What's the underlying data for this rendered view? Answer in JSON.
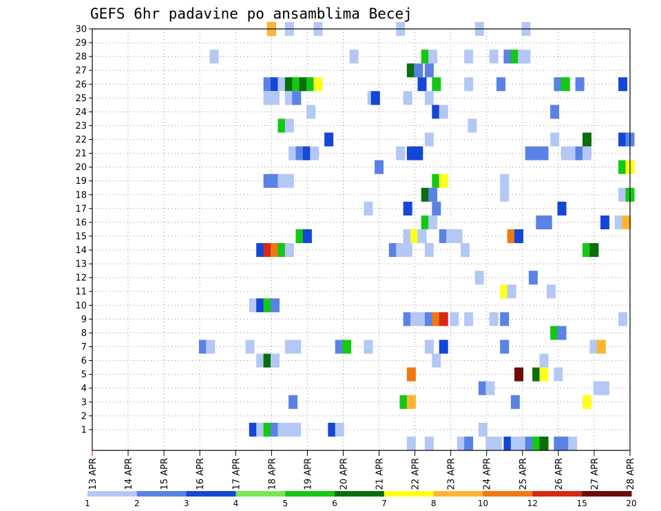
{
  "chart_data": {
    "type": "heatmap",
    "title": "GEFS 6hr padavine po ansamblima Becej",
    "x_ticks": [
      "13 APR",
      "14 APR",
      "15 APR",
      "16 APR",
      "17 APR",
      "18 APR",
      "19 APR",
      "20 APR",
      "21 APR",
      "22 APR",
      "23 APR",
      "24 APR",
      "25 APR",
      "26 APR",
      "27 APR",
      "28 APR"
    ],
    "y_ticks": [
      "1",
      "2",
      "3",
      "4",
      "5",
      "6",
      "7",
      "8",
      "9",
      "10",
      "11",
      "12",
      "13",
      "14",
      "15",
      "16",
      "17",
      "18",
      "19",
      "20",
      "21",
      "22",
      "23",
      "24",
      "25",
      "26",
      "27",
      "28",
      "29",
      "30"
    ],
    "x_range": [
      "13 APR 00Z",
      "28 APR 00Z"
    ],
    "y_range": [
      0,
      30
    ],
    "grid": true,
    "colorbar": {
      "labels": [
        "1",
        "2",
        "3",
        "4",
        "5",
        "6",
        "7",
        "8",
        "10",
        "12",
        "15",
        "20"
      ],
      "colors": [
        "#b4c8f5",
        "#5a82e6",
        "#1446d7",
        "#78e650",
        "#14c814",
        "#0a6e0a",
        "#ffff1e",
        "#ffb432",
        "#f07814",
        "#d72814",
        "#6e0a0a"
      ]
    },
    "points": [
      [
        30,
        5.0,
        5
      ],
      [
        30,
        5.0,
        5
      ],
      [
        30,
        5.0,
        8
      ],
      [
        30,
        5.5,
        1
      ],
      [
        30,
        6.3,
        1
      ],
      [
        30,
        8.6,
        1
      ],
      [
        30,
        10.8,
        1
      ],
      [
        30,
        12.1,
        1
      ],
      [
        28,
        3.4,
        1
      ],
      [
        28,
        7.3,
        1
      ],
      [
        28,
        9.3,
        5
      ],
      [
        28,
        9.5,
        1
      ],
      [
        28,
        10.5,
        1
      ],
      [
        28,
        11.2,
        1
      ],
      [
        28,
        11.6,
        2
      ],
      [
        28,
        11.8,
        5
      ],
      [
        28,
        12.0,
        1
      ],
      [
        28,
        12.1,
        1
      ],
      [
        27,
        8.9,
        6
      ],
      [
        27,
        9.1,
        2
      ],
      [
        27,
        9.4,
        2
      ],
      [
        26,
        4.9,
        2
      ],
      [
        26,
        5.1,
        3
      ],
      [
        26,
        5.3,
        1
      ],
      [
        26,
        5.5,
        6
      ],
      [
        26,
        5.7,
        5
      ],
      [
        26,
        5.9,
        6
      ],
      [
        26,
        6.1,
        5
      ],
      [
        26,
        6.3,
        7
      ],
      [
        26,
        9.2,
        3
      ],
      [
        26,
        9.6,
        5
      ],
      [
        26,
        10.5,
        1
      ],
      [
        26,
        11.4,
        2
      ],
      [
        26,
        13.0,
        2
      ],
      [
        26,
        13.2,
        5
      ],
      [
        26,
        13.6,
        2
      ],
      [
        26,
        14.8,
        3
      ],
      [
        25,
        4.9,
        1
      ],
      [
        25,
        5.1,
        1
      ],
      [
        25,
        5.5,
        1
      ],
      [
        25,
        5.7,
        2
      ],
      [
        25,
        7.8,
        1
      ],
      [
        25,
        7.9,
        3
      ],
      [
        25,
        8.8,
        1
      ],
      [
        25,
        9.4,
        1
      ],
      [
        24,
        6.1,
        1
      ],
      [
        24,
        9.6,
        3
      ],
      [
        24,
        9.8,
        1
      ],
      [
        24,
        12.9,
        2
      ],
      [
        23,
        5.3,
        5
      ],
      [
        23,
        5.5,
        1
      ],
      [
        23,
        10.6,
        1
      ],
      [
        22,
        6.6,
        3
      ],
      [
        22,
        9.4,
        1
      ],
      [
        22,
        12.9,
        1
      ],
      [
        22,
        13.8,
        6
      ],
      [
        22,
        14.8,
        3
      ],
      [
        22,
        15.0,
        2
      ],
      [
        21,
        5.6,
        1
      ],
      [
        21,
        5.8,
        2
      ],
      [
        21,
        6.0,
        3
      ],
      [
        21,
        6.2,
        1
      ],
      [
        21,
        8.6,
        1
      ],
      [
        21,
        8.9,
        3
      ],
      [
        21,
        9.1,
        3
      ],
      [
        21,
        12.2,
        2
      ],
      [
        21,
        12.4,
        2
      ],
      [
        21,
        12.6,
        2
      ],
      [
        21,
        13.2,
        1
      ],
      [
        21,
        13.4,
        1
      ],
      [
        21,
        13.6,
        2
      ],
      [
        21,
        13.8,
        1
      ],
      [
        20,
        8.0,
        2
      ],
      [
        20,
        14.8,
        5
      ],
      [
        20,
        15.0,
        7
      ],
      [
        19,
        4.9,
        2
      ],
      [
        19,
        5.1,
        2
      ],
      [
        19,
        5.3,
        1
      ],
      [
        19,
        5.5,
        1
      ],
      [
        19,
        9.6,
        5
      ],
      [
        19,
        9.8,
        7
      ],
      [
        19,
        11.5,
        1
      ],
      [
        18,
        9.3,
        6
      ],
      [
        18,
        9.5,
        2
      ],
      [
        18,
        11.5,
        1
      ],
      [
        18,
        14.8,
        1
      ],
      [
        18,
        15.0,
        5
      ],
      [
        17,
        7.7,
        1
      ],
      [
        17,
        8.8,
        3
      ],
      [
        17,
        9.6,
        2
      ],
      [
        17,
        13.1,
        3
      ],
      [
        16,
        9.3,
        5
      ],
      [
        16,
        9.5,
        1
      ],
      [
        16,
        12.6,
        1
      ],
      [
        16,
        12.5,
        2
      ],
      [
        16,
        12.7,
        2
      ],
      [
        16,
        14.3,
        3
      ],
      [
        16,
        14.7,
        1
      ],
      [
        16,
        14.9,
        8
      ],
      [
        15,
        5.8,
        5
      ],
      [
        15,
        6.0,
        3
      ],
      [
        15,
        8.8,
        1
      ],
      [
        15,
        9.0,
        7
      ],
      [
        15,
        9.2,
        1
      ],
      [
        15,
        9.8,
        2
      ],
      [
        15,
        10.0,
        1
      ],
      [
        15,
        10.2,
        1
      ],
      [
        15,
        11.7,
        9
      ],
      [
        15,
        11.9,
        3
      ],
      [
        14,
        4.7,
        3
      ],
      [
        14,
        4.9,
        10
      ],
      [
        14,
        5.1,
        9
      ],
      [
        14,
        5.3,
        5
      ],
      [
        14,
        5.5,
        1
      ],
      [
        14,
        8.4,
        2
      ],
      [
        14,
        8.6,
        1
      ],
      [
        14,
        8.8,
        1
      ],
      [
        14,
        9.4,
        1
      ],
      [
        14,
        10.4,
        1
      ],
      [
        14,
        13.8,
        5
      ],
      [
        14,
        14.0,
        6
      ],
      [
        12,
        10.8,
        1
      ],
      [
        12,
        12.3,
        2
      ],
      [
        11,
        11.5,
        7
      ],
      [
        11,
        11.7,
        1
      ],
      [
        11,
        12.8,
        1
      ],
      [
        10,
        4.5,
        1
      ],
      [
        10,
        4.7,
        3
      ],
      [
        10,
        4.9,
        5
      ],
      [
        10,
        5.1,
        2
      ],
      [
        9,
        8.8,
        2
      ],
      [
        9,
        9.0,
        1
      ],
      [
        9,
        9.2,
        1
      ],
      [
        9,
        9.4,
        2
      ],
      [
        9,
        9.6,
        9
      ],
      [
        9,
        9.8,
        10
      ],
      [
        9,
        10.1,
        1
      ],
      [
        9,
        10.5,
        1
      ],
      [
        9,
        11.2,
        1
      ],
      [
        9,
        11.5,
        2
      ],
      [
        9,
        14.8,
        1
      ],
      [
        8,
        12.9,
        5
      ],
      [
        8,
        13.1,
        2
      ],
      [
        7,
        3.1,
        2
      ],
      [
        7,
        3.3,
        1
      ],
      [
        7,
        4.4,
        1
      ],
      [
        7,
        5.5,
        1
      ],
      [
        7,
        5.7,
        1
      ],
      [
        7,
        6.9,
        2
      ],
      [
        7,
        7.1,
        5
      ],
      [
        7,
        7.7,
        1
      ],
      [
        7,
        9.4,
        1
      ],
      [
        7,
        9.8,
        3
      ],
      [
        7,
        11.5,
        2
      ],
      [
        7,
        14.0,
        1
      ],
      [
        7,
        14.2,
        8
      ],
      [
        6,
        4.7,
        1
      ],
      [
        6,
        4.9,
        6
      ],
      [
        6,
        5.1,
        1
      ],
      [
        6,
        9.6,
        1
      ],
      [
        6,
        12.6,
        1
      ],
      [
        5,
        8.9,
        9
      ],
      [
        5,
        11.9,
        11
      ],
      [
        5,
        12.4,
        6
      ],
      [
        5,
        12.6,
        7
      ],
      [
        5,
        13.0,
        1
      ],
      [
        4,
        10.9,
        2
      ],
      [
        4,
        11.1,
        1
      ],
      [
        4,
        14.1,
        1
      ],
      [
        4,
        14.3,
        1
      ],
      [
        3,
        5.6,
        2
      ],
      [
        3,
        8.7,
        5
      ],
      [
        3,
        8.9,
        8
      ],
      [
        3,
        11.8,
        2
      ],
      [
        3,
        13.8,
        7
      ],
      [
        1,
        4.5,
        3
      ],
      [
        1,
        4.7,
        1
      ],
      [
        1,
        4.9,
        5
      ],
      [
        1,
        5.1,
        2
      ],
      [
        1,
        5.3,
        1
      ],
      [
        1,
        5.5,
        1
      ],
      [
        1,
        5.7,
        1
      ],
      [
        1,
        6.7,
        3
      ],
      [
        1,
        6.9,
        1
      ],
      [
        1,
        10.9,
        1
      ],
      [
        0,
        8.9,
        1
      ],
      [
        0,
        9.4,
        1
      ],
      [
        0,
        10.3,
        1
      ],
      [
        0,
        10.5,
        2
      ],
      [
        0,
        11.1,
        1
      ],
      [
        0,
        11.3,
        1
      ],
      [
        0,
        11.6,
        3
      ],
      [
        0,
        11.8,
        1
      ],
      [
        0,
        12.0,
        1
      ],
      [
        0,
        12.2,
        2
      ],
      [
        0,
        12.4,
        5
      ],
      [
        0,
        12.6,
        6
      ],
      [
        0,
        13.0,
        2
      ],
      [
        0,
        13.2,
        2
      ],
      [
        0,
        13.4,
        1
      ]
    ]
  }
}
